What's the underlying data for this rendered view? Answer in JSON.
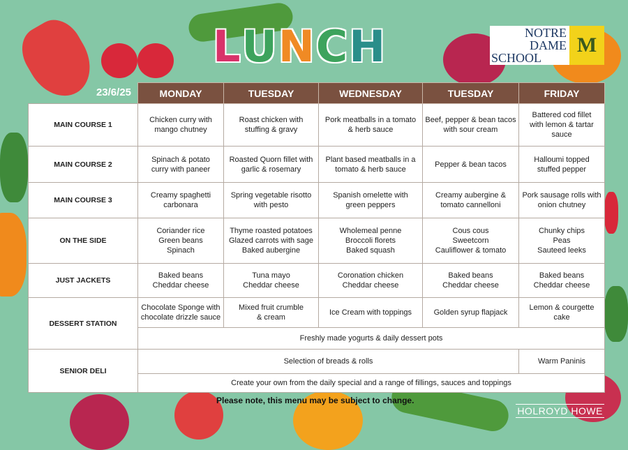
{
  "header": {
    "title_letters": [
      {
        "char": "L",
        "color": "#d8336a"
      },
      {
        "char": "U",
        "color": "#3da35d"
      },
      {
        "char": "N",
        "color": "#f08a24"
      },
      {
        "char": "C",
        "color": "#3da35d"
      },
      {
        "char": "H",
        "color": "#2a8e8a"
      }
    ],
    "logo": {
      "lines": [
        "NOTRE",
        "DAME",
        "SCHOOL"
      ],
      "crest": "M"
    },
    "date": "23/6/25"
  },
  "days": [
    "MONDAY",
    "TUESDAY",
    "WEDNESDAY",
    "TUESDAY",
    "FRIDAY"
  ],
  "rows": [
    {
      "label": "MAIN COURSE 1",
      "cells": [
        [
          "Chicken curry with",
          "mango chutney"
        ],
        [
          "Roast chicken with",
          "stuffing & gravy"
        ],
        [
          "Pork meatballs in a tomato",
          "& herb sauce"
        ],
        [
          "Beef, pepper & bean tacos",
          "with sour cream"
        ],
        [
          "Battered cod fillet",
          "with lemon & tartar",
          "sauce"
        ]
      ]
    },
    {
      "label": "MAIN COURSE 2",
      "cells": [
        [
          "Spinach & potato",
          "curry with paneer"
        ],
        [
          "Roasted Quorn fillet with",
          "garlic & rosemary"
        ],
        [
          "Plant based meatballs in a",
          "tomato & herb sauce"
        ],
        [
          "Pepper & bean tacos"
        ],
        [
          "Halloumi topped",
          "stuffed pepper"
        ]
      ]
    },
    {
      "label": "MAIN COURSE 3",
      "cells": [
        [
          "Creamy spaghetti",
          "carbonara"
        ],
        [
          "Spring vegetable risotto",
          "with pesto"
        ],
        [
          "Spanish omelette with",
          "green peppers"
        ],
        [
          "Creamy aubergine &",
          "tomato cannelloni"
        ],
        [
          "Pork sausage rolls with",
          "onion chutney"
        ]
      ]
    },
    {
      "label": "ON THE SIDE",
      "cells": [
        [
          "Coriander rice",
          "Green beans",
          "Spinach"
        ],
        [
          "Thyme roasted potatoes",
          "Glazed carrots with sage",
          "Baked aubergine"
        ],
        [
          "Wholemeal penne",
          "Broccoli florets",
          "Baked squash"
        ],
        [
          "Cous cous",
          "Sweetcorn",
          "Cauliflower & tomato"
        ],
        [
          "Chunky chips",
          "Peas",
          "Sauteed leeks"
        ]
      ]
    },
    {
      "label": "JUST JACKETS",
      "cells": [
        [
          "Baked beans",
          "Cheddar cheese"
        ],
        [
          "Tuna mayo",
          "Cheddar cheese"
        ],
        [
          "Coronation chicken",
          "Cheddar cheese"
        ],
        [
          "Baked beans",
          "Cheddar cheese"
        ],
        [
          "Baked beans",
          "Cheddar cheese"
        ]
      ]
    }
  ],
  "dessert": {
    "label": "DESSERT  STATION",
    "cells": [
      [
        "Chocolate Sponge with",
        "chocolate drizzle sauce"
      ],
      [
        "Mixed fruit crumble",
        "& cream"
      ],
      [
        "Ice Cream with toppings"
      ],
      [
        "Golden syrup flapjack"
      ],
      [
        "Lemon & courgette",
        "cake"
      ]
    ],
    "daily": "Freshly made yogurts & daily dessert pots"
  },
  "deli": {
    "label": "SENIOR DELI",
    "breads": "Selection of breads & rolls",
    "friday": "Warm Paninis",
    "create": "Create your own from the daily special and a range of fillings, sauces and toppings"
  },
  "footer": {
    "note": "Please note, this menu may be subject to change.",
    "brand": "HOLROYD HOWE"
  }
}
